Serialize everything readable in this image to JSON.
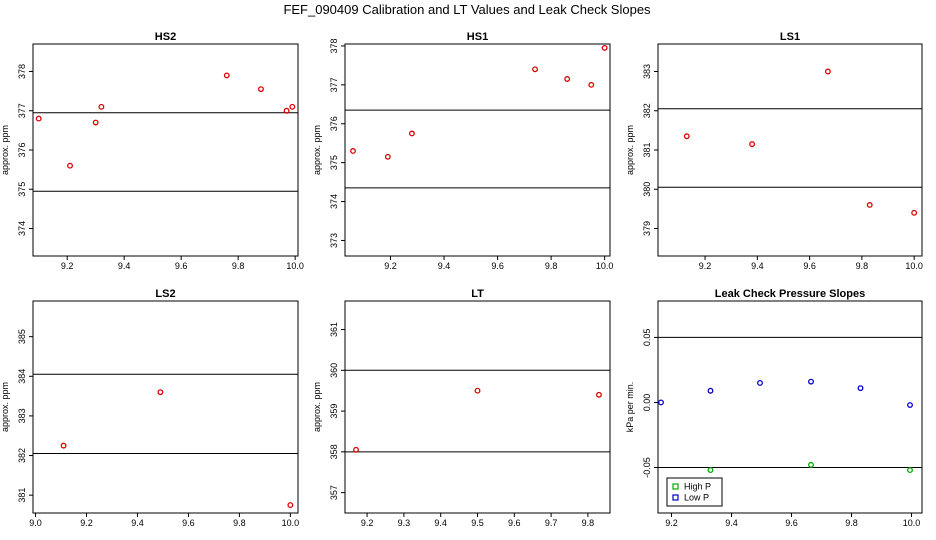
{
  "title": "FEF_090409  Calibration and LT Values and Leak Check Slopes",
  "chart_data": [
    {
      "type": "scatter",
      "title": "HS2",
      "ylabel": "approx. ppm",
      "xlim": [
        9.08,
        10.01
      ],
      "ylim": [
        373.3,
        378.7
      ],
      "xticks": [
        9.2,
        9.4,
        9.6,
        9.8,
        10.0
      ],
      "xtick_labels": [
        "9.2",
        "9.4",
        "9.6",
        "9.8",
        "10.0"
      ],
      "yticks": [
        374,
        375,
        376,
        377,
        378
      ],
      "ytick_labels": [
        "374",
        "375",
        "376",
        "377",
        "378"
      ],
      "hlines": [
        376.95,
        374.95
      ],
      "series": [
        {
          "name": "points",
          "color": "#dd0000",
          "x": [
            9.1,
            9.21,
            9.3,
            9.32,
            9.76,
            9.88,
            9.97,
            9.99
          ],
          "y": [
            376.8,
            375.6,
            376.7,
            377.1,
            377.9,
            377.55,
            377.0,
            377.1
          ]
        }
      ]
    },
    {
      "type": "scatter",
      "title": "HS1",
      "ylabel": "approx. ppm",
      "xlim": [
        9.03,
        10.02
      ],
      "ylim": [
        372.6,
        378.05
      ],
      "xticks": [
        9.2,
        9.4,
        9.6,
        9.8,
        10.0
      ],
      "xtick_labels": [
        "9.2",
        "9.4",
        "9.6",
        "9.8",
        "10.0"
      ],
      "yticks": [
        373,
        374,
        375,
        376,
        377,
        378
      ],
      "ytick_labels": [
        "373",
        "374",
        "375",
        "376",
        "377",
        "378"
      ],
      "hlines": [
        376.35,
        374.35
      ],
      "series": [
        {
          "name": "points",
          "color": "#dd0000",
          "x": [
            9.06,
            9.19,
            9.28,
            9.74,
            9.86,
            9.95,
            10.0
          ],
          "y": [
            375.3,
            375.15,
            375.75,
            377.4,
            377.15,
            377.0,
            377.95
          ]
        }
      ]
    },
    {
      "type": "scatter",
      "title": "LS1",
      "ylabel": "approx. ppm",
      "xlim": [
        9.02,
        10.03
      ],
      "ylim": [
        378.3,
        383.7
      ],
      "xticks": [
        9.2,
        9.4,
        9.6,
        9.8,
        10.0
      ],
      "xtick_labels": [
        "9.2",
        "9.4",
        "9.6",
        "9.8",
        "10.0"
      ],
      "yticks": [
        379,
        380,
        381,
        382,
        383
      ],
      "ytick_labels": [
        "379",
        "380",
        "381",
        "382",
        "383"
      ],
      "hlines": [
        382.05,
        380.05
      ],
      "series": [
        {
          "name": "points",
          "color": "#dd0000",
          "x": [
            9.13,
            9.38,
            9.67,
            9.83,
            10.0
          ],
          "y": [
            381.35,
            381.15,
            383.0,
            379.6,
            379.4
          ]
        }
      ]
    },
    {
      "type": "scatter",
      "title": "LS2",
      "ylabel": "approx. ppm",
      "xlim": [
        8.99,
        10.03
      ],
      "ylim": [
        380.55,
        385.9
      ],
      "xticks": [
        9.0,
        9.2,
        9.4,
        9.6,
        9.8,
        10.0
      ],
      "xtick_labels": [
        "9.0",
        "9.2",
        "9.4",
        "9.6",
        "9.8",
        "10.0"
      ],
      "yticks": [
        381,
        382,
        383,
        384,
        385
      ],
      "ytick_labels": [
        "381",
        "382",
        "383",
        "384",
        "385"
      ],
      "hlines": [
        384.05,
        382.05
      ],
      "series": [
        {
          "name": "points",
          "color": "#dd0000",
          "x": [
            9.11,
            9.49,
            10.0
          ],
          "y": [
            382.25,
            383.6,
            380.75
          ]
        }
      ]
    },
    {
      "type": "scatter",
      "title": "LT",
      "ylabel": "approx. ppm",
      "xlim": [
        9.14,
        9.86
      ],
      "ylim": [
        356.5,
        361.7
      ],
      "xticks": [
        9.2,
        9.3,
        9.4,
        9.5,
        9.6,
        9.7,
        9.8
      ],
      "xtick_labels": [
        "9.2",
        "9.3",
        "9.4",
        "9.5",
        "9.6",
        "9.7",
        "9.8"
      ],
      "yticks": [
        357,
        358,
        359,
        360,
        361
      ],
      "ytick_labels": [
        "357",
        "358",
        "359",
        "360",
        "361"
      ],
      "hlines": [
        360.0,
        358.0
      ],
      "series": [
        {
          "name": "points",
          "color": "#dd0000",
          "x": [
            9.17,
            9.5,
            9.83
          ],
          "y": [
            358.05,
            359.5,
            359.4
          ]
        }
      ]
    },
    {
      "type": "scatter",
      "title": "Leak Check Pressure Slopes",
      "ylabel": "kPa per min.",
      "xlim": [
        9.155,
        10.035
      ],
      "ylim": [
        -0.085,
        0.078
      ],
      "xticks": [
        9.2,
        9.4,
        9.6,
        9.8,
        10.0
      ],
      "xtick_labels": [
        "9.2",
        "9.4",
        "9.6",
        "9.8",
        "10.0"
      ],
      "yticks": [
        -0.05,
        0.0,
        0.05
      ],
      "ytick_labels": [
        "-0.05",
        "0.00",
        "0.05"
      ],
      "hlines": [
        0.05,
        -0.05
      ],
      "legend": {
        "position": "bottom-left",
        "entries": [
          "High P",
          "Low P"
        ]
      },
      "series": [
        {
          "name": "High P",
          "color": "#00aa00",
          "x": [
            9.33,
            9.665,
            9.995
          ],
          "y": [
            -0.052,
            -0.048,
            -0.052
          ]
        },
        {
          "name": "Low P",
          "color": "#0000cc",
          "x": [
            9.165,
            9.33,
            9.495,
            9.665,
            9.83,
            9.995
          ],
          "y": [
            0.0,
            0.009,
            0.015,
            0.016,
            0.011,
            -0.002
          ]
        }
      ]
    }
  ]
}
